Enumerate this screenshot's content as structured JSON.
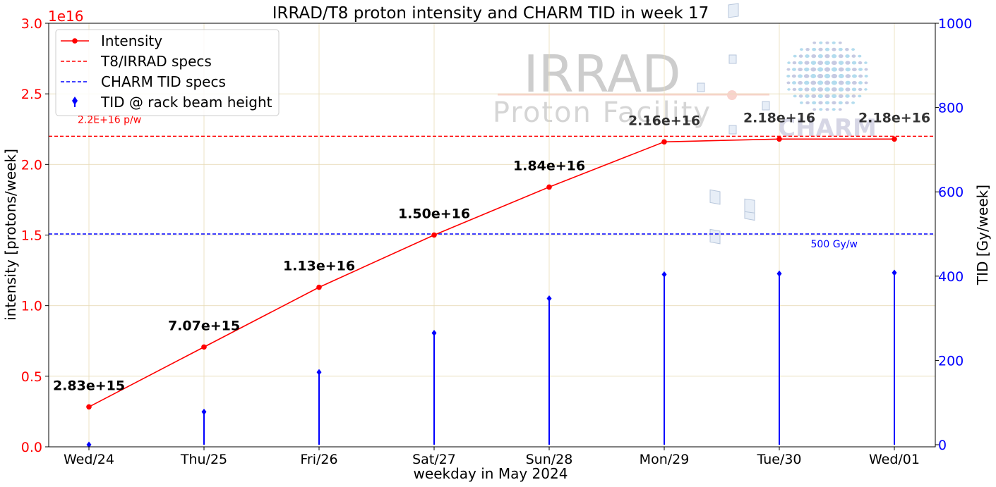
{
  "chart_data": {
    "type": "line",
    "title": "IRRAD/T8 proton intensity and CHARM TID in week 17",
    "xlabel": "weekday in May 2024",
    "ylabel": "intensity [protons/week]",
    "ylabel_right": "TID [Gy/week]",
    "y_offset_text": "1e16",
    "categories": [
      "Wed/24",
      "Thu/25",
      "Fri/26",
      "Sat/27",
      "Sun/28",
      "Mon/29",
      "Tue/30",
      "Wed/01"
    ],
    "ylim": [
      0,
      3.0
    ],
    "ylim_right": [
      -5,
      1000
    ],
    "yticks": [
      "0.0",
      "0.5",
      "1.0",
      "1.5",
      "2.0",
      "2.5",
      "3.0"
    ],
    "yticks_right": [
      "0",
      "200",
      "400",
      "600",
      "800",
      "1000"
    ],
    "grid": true,
    "legend_position": "top-left",
    "series": [
      {
        "name": "Intensity",
        "axis": "left",
        "color": "#ff0000",
        "values": [
          0.283,
          0.707,
          1.13,
          1.5,
          1.84,
          2.16,
          2.18,
          2.18
        ],
        "labels": [
          "2.83e+15",
          "7.07e+15",
          "1.13e+16",
          "1.50e+16",
          "1.84e+16",
          "2.16e+16",
          "2.18e+16",
          "2.18e+16"
        ]
      },
      {
        "name": "TID @ rack beam height",
        "axis": "right",
        "color": "#0000ff",
        "values": [
          0,
          78,
          172,
          265,
          347,
          404,
          406,
          408
        ]
      }
    ],
    "reference_lines": [
      {
        "name": "T8/IRRAD specs",
        "axis": "left",
        "value": 2.2,
        "color": "#ff0000",
        "label": "2.2E+16 p/w"
      },
      {
        "name": "CHARM TID specs",
        "axis": "right",
        "value": 500,
        "color": "#0000ff",
        "label": "500 Gy/w"
      }
    ],
    "watermarks": {
      "irrad_logo_line1": "IRRAD",
      "irrad_logo_line2": "Proton Facility",
      "charm_logo": "CHARM"
    }
  }
}
